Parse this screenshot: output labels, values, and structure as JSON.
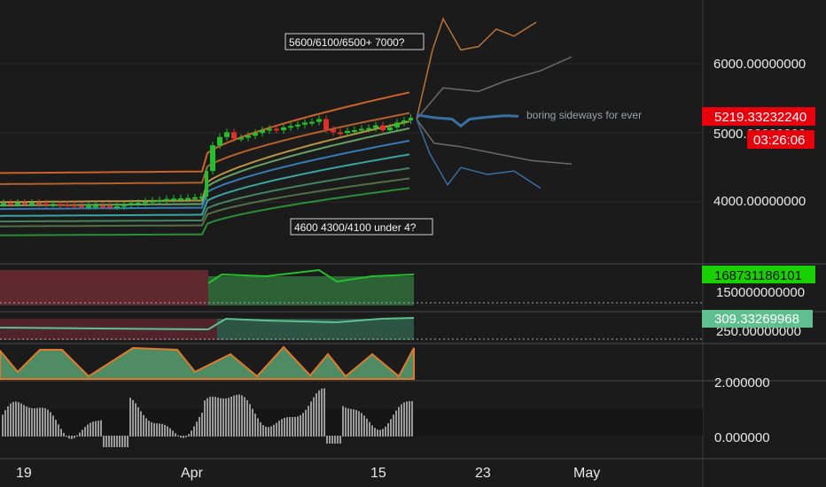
{
  "colors": {
    "background": "#1b1b1b",
    "grid": "#2a2a2a",
    "axis_text": "#e8e8e8",
    "candle_up": "#22c02a",
    "candle_down": "#e0302a",
    "price_badge": "#e8000c",
    "volume_badge": "#19d100",
    "obv_badge": "#5fbf8e",
    "projection": "#3a6ea5"
  },
  "chart_data": [
    {
      "type": "line",
      "title": "",
      "x_ticks": [
        "19",
        "Apr",
        "15",
        "23",
        "May"
      ],
      "y_ticks": [
        "6000.00000000",
        "5000.00000000",
        "4000.00000000"
      ],
      "ylim": [
        3450,
        6600
      ],
      "price_last": "5219.33232240",
      "countdown": "03:26:06",
      "annotations": [
        {
          "text": "5600/6100/6500+ 7000?"
        },
        {
          "text": "4600 4300/4100 under 4?"
        },
        {
          "text": "boring sideways for ever"
        }
      ],
      "close_path": [
        [
          0,
          3980
        ],
        [
          8,
          3985
        ],
        [
          16,
          3980
        ],
        [
          24,
          3990
        ],
        [
          32,
          3985
        ],
        [
          40,
          3990
        ],
        [
          48,
          3980
        ],
        [
          56,
          3970
        ],
        [
          64,
          3975
        ],
        [
          72,
          3965
        ],
        [
          80,
          3960
        ],
        [
          88,
          3950
        ],
        [
          96,
          3945
        ],
        [
          104,
          3945
        ],
        [
          112,
          3950
        ],
        [
          120,
          3945
        ],
        [
          128,
          3940
        ],
        [
          136,
          3940
        ],
        [
          144,
          3960
        ],
        [
          152,
          3985
        ],
        [
          160,
          3990
        ],
        [
          168,
          4010
        ],
        [
          176,
          4020
        ],
        [
          184,
          4030
        ],
        [
          192,
          4045
        ],
        [
          200,
          4050
        ],
        [
          208,
          4055
        ],
        [
          216,
          4060
        ],
        [
          224,
          4070
        ],
        [
          230,
          4080
        ],
        [
          236,
          4450
        ],
        [
          244,
          4820
        ],
        [
          252,
          4940
        ],
        [
          260,
          5010
        ],
        [
          268,
          4920
        ],
        [
          276,
          4930
        ],
        [
          284,
          4960
        ],
        [
          292,
          5000
        ],
        [
          300,
          5040
        ],
        [
          308,
          5060
        ],
        [
          316,
          5040
        ],
        [
          324,
          5080
        ],
        [
          332,
          5100
        ],
        [
          340,
          5120
        ],
        [
          348,
          5150
        ],
        [
          356,
          5160
        ],
        [
          364,
          5200
        ],
        [
          372,
          5050
        ],
        [
          380,
          5010
        ],
        [
          388,
          5000
        ],
        [
          396,
          5030
        ],
        [
          404,
          5040
        ],
        [
          412,
          5060
        ],
        [
          420,
          5070
        ],
        [
          428,
          5110
        ],
        [
          436,
          5040
        ],
        [
          444,
          5080
        ],
        [
          452,
          5150
        ],
        [
          460,
          5180
        ],
        [
          467,
          5219
        ]
      ],
      "bands": [
        {
          "name": "band-1",
          "color": "#e06a2c",
          "from": 4420,
          "to": 5600
        },
        {
          "name": "band-2",
          "color": "#c7692e",
          "from": 4260,
          "to": 5300
        },
        {
          "name": "band-3",
          "color": "#caa04a",
          "from": 4000,
          "to": 5180
        },
        {
          "name": "band-4",
          "color": "#6fb06f",
          "from": 3950,
          "to": 5080
        },
        {
          "name": "band-5",
          "color": "#3a86c8",
          "from": 3900,
          "to": 4900
        },
        {
          "name": "band-6",
          "color": "#3fb3b0",
          "from": 3800,
          "to": 4700
        },
        {
          "name": "band-7",
          "color": "#4a8f6a",
          "from": 3720,
          "to": 4500
        },
        {
          "name": "band-8",
          "color": "#5a7a4a",
          "from": 3650,
          "to": 4350
        },
        {
          "name": "band-9",
          "color": "#2e9a3c",
          "from": 3520,
          "to": 4210
        }
      ],
      "projections": [
        {
          "name": "up-strong",
          "color": "#b8733a",
          "values": [
            [
              470,
              5200
            ],
            [
              488,
              6200
            ],
            [
              500,
              6650
            ],
            [
              520,
              6200
            ],
            [
              540,
              6250
            ],
            [
              560,
              6500
            ],
            [
              580,
              6400
            ],
            [
              605,
              6600
            ]
          ]
        },
        {
          "name": "up-mild",
          "color": "#6b6b6b",
          "values": [
            [
              470,
              5200
            ],
            [
              500,
              5650
            ],
            [
              540,
              5600
            ],
            [
              570,
              5750
            ],
            [
              610,
              5900
            ],
            [
              645,
              6100
            ]
          ]
        },
        {
          "name": "down-mild",
          "color": "#6b6b6b",
          "values": [
            [
              470,
              5200
            ],
            [
              490,
              4850
            ],
            [
              520,
              4800
            ],
            [
              560,
              4700
            ],
            [
              600,
              4600
            ],
            [
              645,
              4550
            ]
          ]
        },
        {
          "name": "down-strong",
          "color": "#3a6ea5",
          "values": [
            [
              470,
              5200
            ],
            [
              485,
              4700
            ],
            [
              505,
              4250
            ],
            [
              520,
              4500
            ],
            [
              550,
              4400
            ],
            [
              580,
              4450
            ],
            [
              610,
              4200
            ]
          ]
        },
        {
          "name": "sideways",
          "color": "#3a6ea5",
          "values": [
            [
              470,
              5260
            ],
            [
              490,
              5220
            ],
            [
              510,
              5200
            ],
            [
              520,
              5100
            ],
            [
              530,
              5200
            ],
            [
              550,
              5230
            ],
            [
              570,
              5250
            ],
            [
              585,
              5240
            ]
          ]
        }
      ]
    },
    {
      "type": "area",
      "name": "volume-panel",
      "y_ticks": [
        "150000000000"
      ],
      "last": "168731186101"
    },
    {
      "type": "area",
      "name": "obv-panel",
      "y_ticks": [
        "250.00000000"
      ],
      "last": "309.33269968"
    },
    {
      "type": "area",
      "name": "stoch-panel",
      "y_ticks": [
        "2.000000"
      ]
    },
    {
      "type": "bar",
      "name": "histogram-panel",
      "y_ticks": [
        "0.000000"
      ]
    }
  ]
}
